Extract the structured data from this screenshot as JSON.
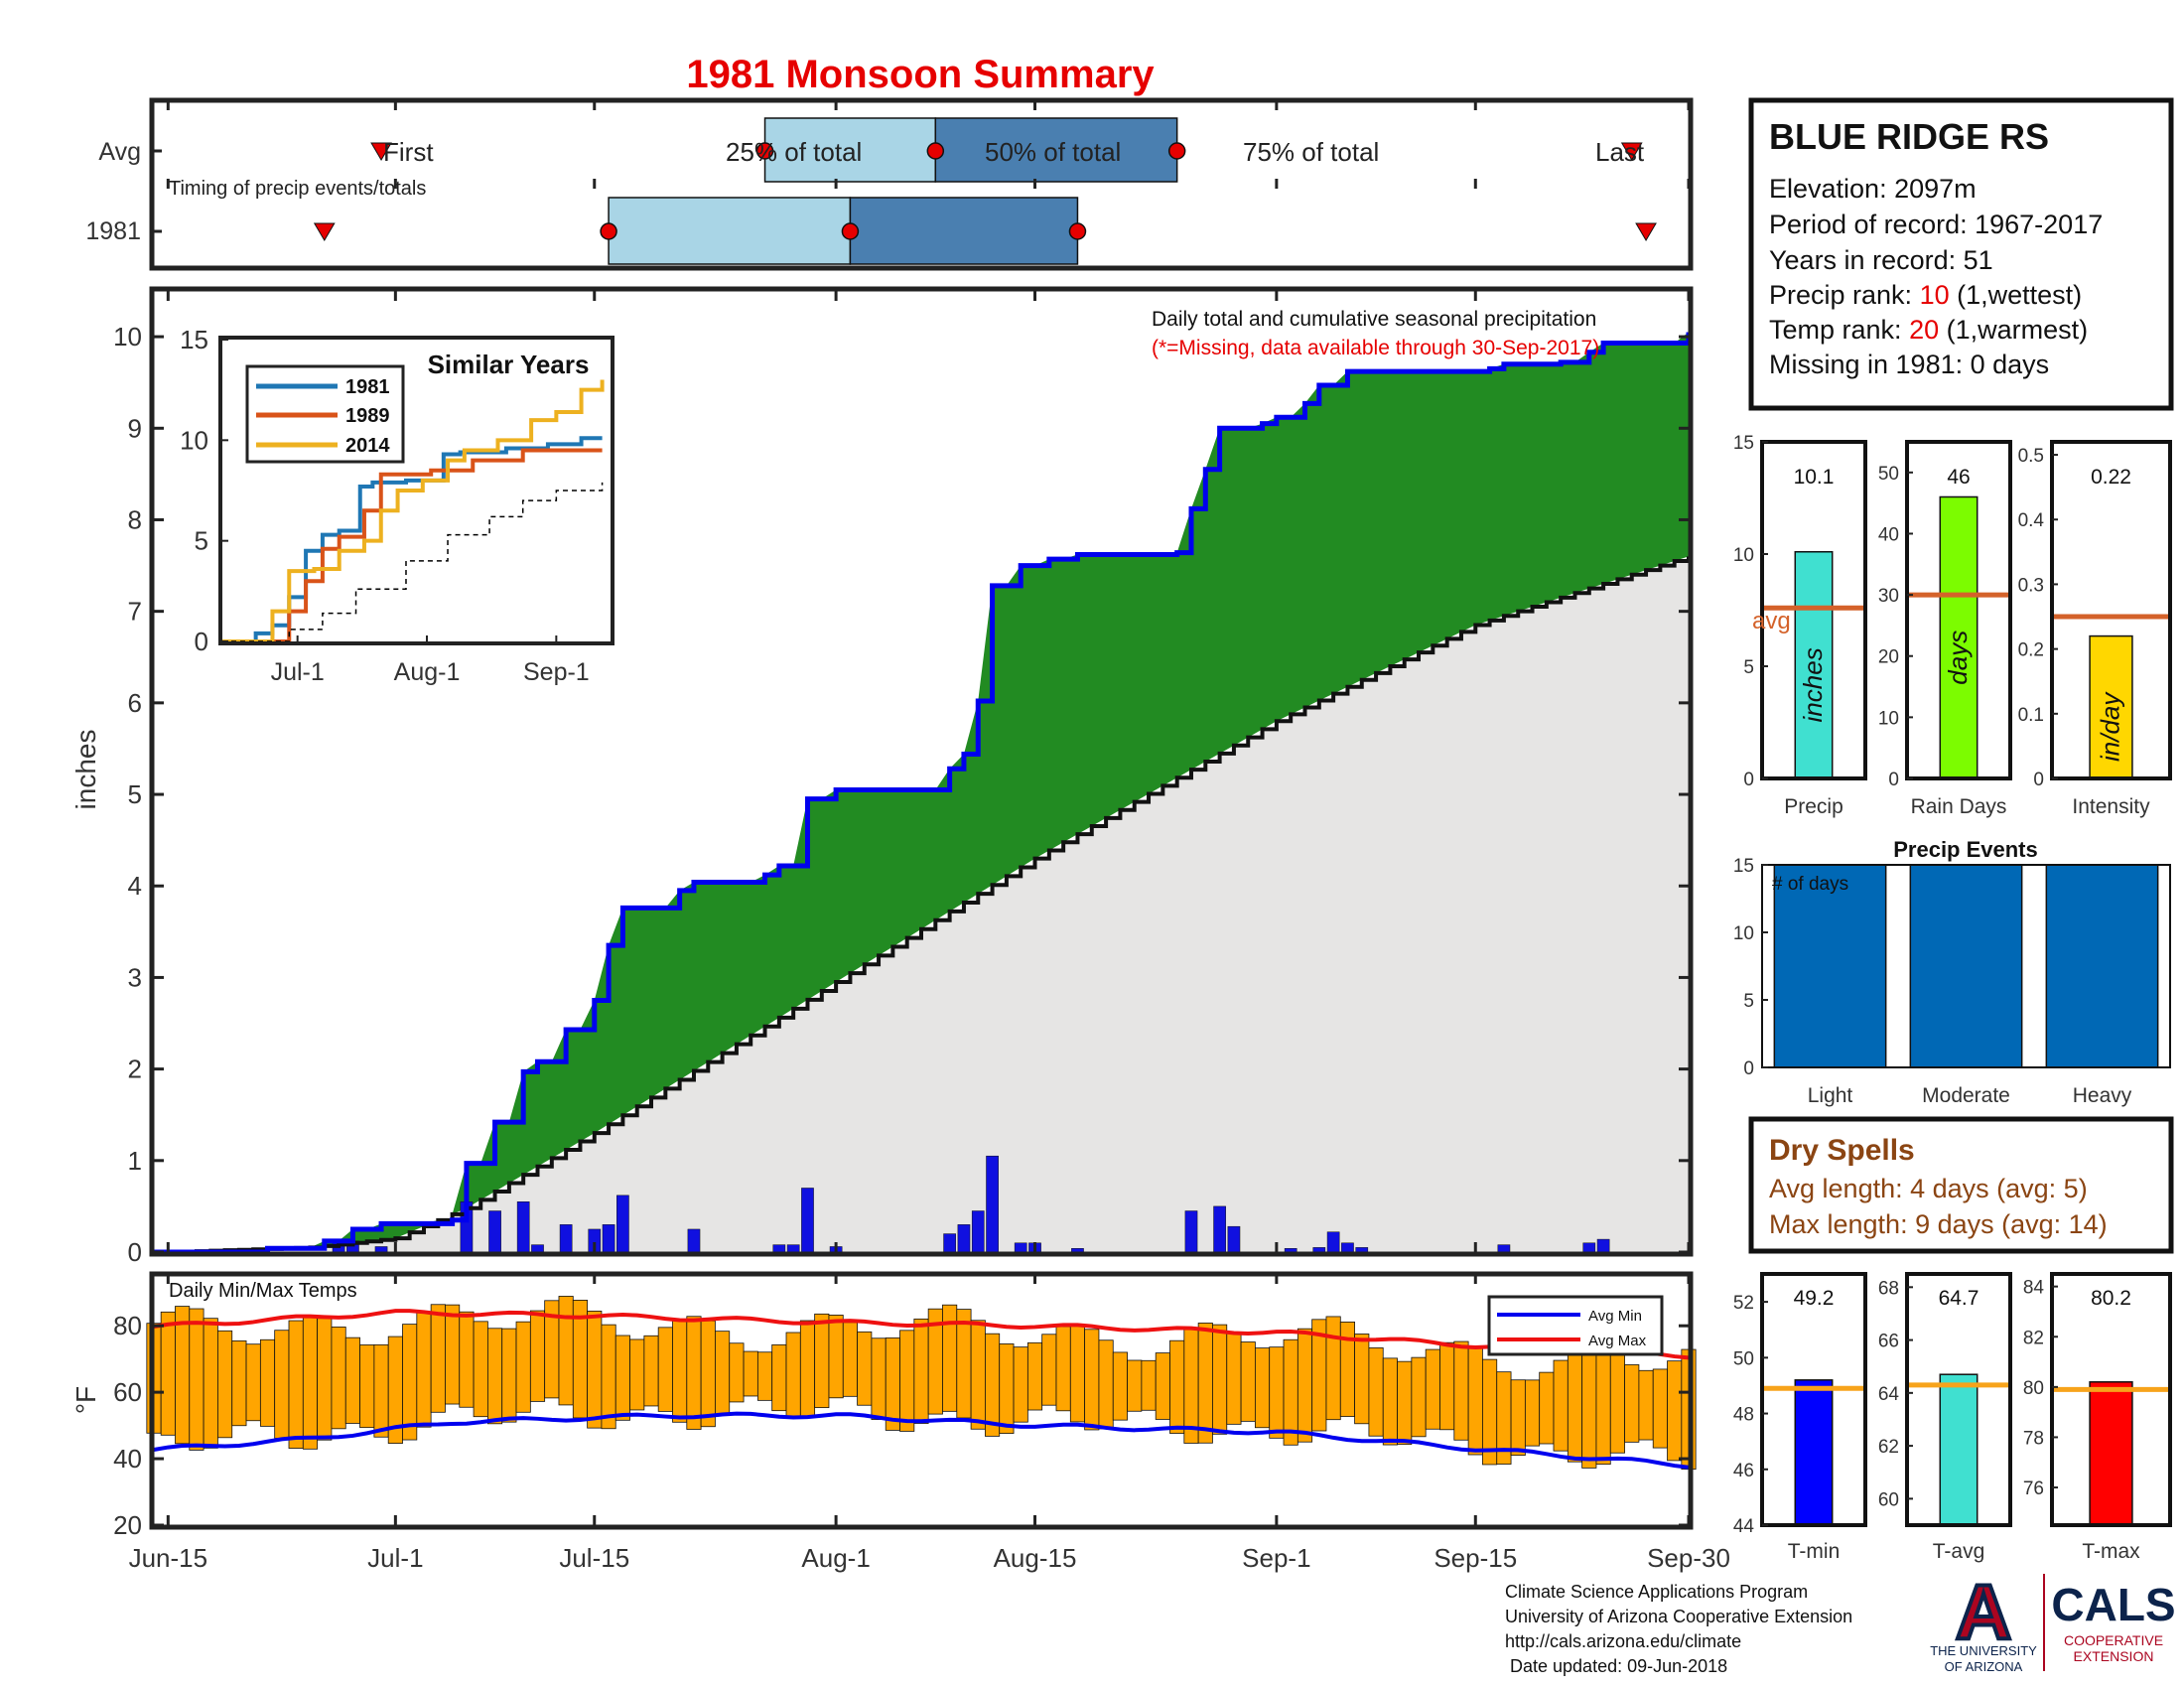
{
  "title": "1981 Monsoon Summary",
  "colors": {
    "title": "#e60000",
    "cumulative_line": "#0000ee",
    "green_fill": "#228b22",
    "avg_fill": "#e6e5e4",
    "daily_bar": "#1010e0",
    "temp_bar": "#ffa500",
    "avg_min_line": "#0000ee",
    "avg_max_line": "#ee1111",
    "light_blue": "#a9d5e6",
    "dark_blue": "#4a7fb0",
    "events_bar": "#0068b5",
    "avg_line": "#d4622a",
    "temp_avg_line": "#f7a31b",
    "dry_spell_text": "#8b4513",
    "rank_red": "#e60000"
  },
  "timing": {
    "row_labels": [
      "Avg",
      "1981"
    ],
    "caption": "Timing of precip events/totals",
    "marker_labels": [
      "First",
      "25% of total",
      "50% of total",
      "75% of total",
      "Last"
    ],
    "avg_dates": {
      "first": "Jun-30",
      "p25": "Jul-27",
      "p50": "Aug-08",
      "p75": "Aug-25",
      "last": "Sep-26"
    },
    "year_dates": {
      "first": "Jun-26",
      "p25": "Jul-16",
      "p50": "Aug-02",
      "p75": "Aug-18",
      "last": "Sep-27"
    }
  },
  "main_chart": {
    "type": "area",
    "ylabel": "inches",
    "ylim": [
      0,
      10.5
    ],
    "yticks": [
      0,
      1,
      2,
      3,
      4,
      5,
      6,
      7,
      8,
      9,
      10
    ],
    "date_range": [
      "Jun-15",
      "Sep-30"
    ],
    "xtick_labels": [
      "Jun-15",
      "Jul-1",
      "Jul-15",
      "Aug-1",
      "Aug-15",
      "Sep-1",
      "Sep-15",
      "Sep-30"
    ],
    "annotation_line1": "Daily total and cumulative seasonal precipitation",
    "annotation_line2": "(*=Missing, data available through 30-Sep-2017)"
  },
  "chart_data": {
    "type": "area",
    "title": "1981 Monsoon Summary",
    "ylabel": "inches",
    "ylim": [
      0,
      10.5
    ],
    "cumulative_1981": [
      [
        "Jun-15",
        0.0
      ],
      [
        "Jun-22",
        0.04
      ],
      [
        "Jun-26",
        0.12
      ],
      [
        "Jun-28",
        0.25
      ],
      [
        "Jun-30",
        0.31
      ],
      [
        "Jul-5",
        0.35
      ],
      [
        "Jul-6",
        0.97
      ],
      [
        "Jul-8",
        1.42
      ],
      [
        "Jul-10",
        1.97
      ],
      [
        "Jul-11",
        2.08
      ],
      [
        "Jul-13",
        2.43
      ],
      [
        "Jul-15",
        2.75
      ],
      [
        "Jul-16",
        3.35
      ],
      [
        "Jul-17",
        3.76
      ],
      [
        "Jul-21",
        3.95
      ],
      [
        "Jul-22",
        4.04
      ],
      [
        "Jul-27",
        4.12
      ],
      [
        "Jul-28",
        4.22
      ],
      [
        "Jul-30",
        4.95
      ],
      [
        "Aug-1",
        5.05
      ],
      [
        "Aug-8",
        5.05
      ],
      [
        "Aug-9",
        5.28
      ],
      [
        "Aug-10",
        5.44
      ],
      [
        "Aug-11",
        6.02
      ],
      [
        "Aug-12",
        7.28
      ],
      [
        "Aug-14",
        7.5
      ],
      [
        "Aug-16",
        7.57
      ],
      [
        "Aug-18",
        7.62
      ],
      [
        "Aug-25",
        7.64
      ],
      [
        "Aug-26",
        8.12
      ],
      [
        "Aug-27",
        8.55
      ],
      [
        "Aug-28",
        9.0
      ],
      [
        "Aug-31",
        9.05
      ],
      [
        "Sep-1",
        9.12
      ],
      [
        "Sep-3",
        9.27
      ],
      [
        "Sep-4",
        9.47
      ],
      [
        "Sep-6",
        9.62
      ],
      [
        "Sep-16",
        9.65
      ],
      [
        "Sep-17",
        9.7
      ],
      [
        "Sep-21",
        9.72
      ],
      [
        "Sep-23",
        9.83
      ],
      [
        "Sep-24",
        9.93
      ],
      [
        "Sep-30",
        10.05
      ]
    ],
    "cumulative_avg": [
      [
        "Jun-15",
        0.0
      ],
      [
        "Jun-25",
        0.05
      ],
      [
        "Jul-1",
        0.15
      ],
      [
        "Jul-6",
        0.48
      ],
      [
        "Jul-15",
        1.3
      ],
      [
        "Aug-1",
        2.95
      ],
      [
        "Aug-15",
        4.3
      ],
      [
        "Sep-1",
        5.8
      ],
      [
        "Sep-15",
        6.85
      ],
      [
        "Sep-30",
        7.6
      ]
    ],
    "daily_precip": [
      [
        "Jun-27",
        0.12
      ],
      [
        "Jun-28",
        0.12
      ],
      [
        "Jun-30",
        0.06
      ],
      [
        "Jul-6",
        0.55
      ],
      [
        "Jul-8",
        0.45
      ],
      [
        "Jul-10",
        0.55
      ],
      [
        "Jul-11",
        0.08
      ],
      [
        "Jul-13",
        0.3
      ],
      [
        "Jul-15",
        0.25
      ],
      [
        "Jul-16",
        0.3
      ],
      [
        "Jul-17",
        0.62
      ],
      [
        "Jul-22",
        0.25
      ],
      [
        "Jul-28",
        0.08
      ],
      [
        "Jul-29",
        0.08
      ],
      [
        "Jul-30",
        0.7
      ],
      [
        "Aug-1",
        0.06
      ],
      [
        "Aug-9",
        0.2
      ],
      [
        "Aug-10",
        0.3
      ],
      [
        "Aug-11",
        0.45
      ],
      [
        "Aug-12",
        1.05
      ],
      [
        "Aug-14",
        0.1
      ],
      [
        "Aug-15",
        0.1
      ],
      [
        "Aug-18",
        0.04
      ],
      [
        "Aug-26",
        0.45
      ],
      [
        "Aug-28",
        0.5
      ],
      [
        "Aug-29",
        0.28
      ],
      [
        "Sep-2",
        0.04
      ],
      [
        "Sep-4",
        0.05
      ],
      [
        "Sep-5",
        0.22
      ],
      [
        "Sep-6",
        0.1
      ],
      [
        "Sep-7",
        0.05
      ],
      [
        "Sep-17",
        0.08
      ],
      [
        "Sep-23",
        0.1
      ],
      [
        "Sep-24",
        0.14
      ]
    ],
    "temps": {
      "ylim": [
        20,
        95
      ],
      "yticks": [
        20,
        40,
        60,
        80
      ],
      "avg_min": [
        [
          "Jun-15",
          43
        ],
        [
          "Jun-25",
          46
        ],
        [
          "Jul-5",
          51
        ],
        [
          "Jul-20",
          53
        ],
        [
          "Aug-1",
          53
        ],
        [
          "Aug-15",
          50
        ],
        [
          "Sep-1",
          48
        ],
        [
          "Sep-15",
          43
        ],
        [
          "Sep-30",
          38
        ]
      ],
      "avg_max": [
        [
          "Jun-15",
          80
        ],
        [
          "Jul-1",
          84
        ],
        [
          "Jul-15",
          83
        ],
        [
          "Aug-1",
          81
        ],
        [
          "Aug-15",
          80
        ],
        [
          "Sep-1",
          78
        ],
        [
          "Sep-15",
          74
        ],
        [
          "Sep-30",
          71
        ]
      ]
    },
    "similar_years": {
      "title": "Similar Years",
      "ylim": [
        0,
        15
      ],
      "yticks": [
        0,
        5,
        10,
        15
      ],
      "xtick_labels": [
        "Jul-1",
        "Aug-1",
        "Sep-1"
      ],
      "series": [
        {
          "name": "1981",
          "color": "#1f77b4",
          "values": [
            [
              0,
              0
            ],
            [
              6,
              0
            ],
            [
              8,
              0.4
            ],
            [
              12,
              0.8
            ],
            [
              16,
              2.2
            ],
            [
              20,
              4.5
            ],
            [
              24,
              5.3
            ],
            [
              28,
              5.5
            ],
            [
              33,
              7.7
            ],
            [
              36,
              7.9
            ],
            [
              44,
              8.0
            ],
            [
              53,
              9.3
            ],
            [
              57,
              9.4
            ],
            [
              68,
              9.6
            ],
            [
              78,
              9.8
            ],
            [
              86,
              10.1
            ],
            [
              91,
              10.1
            ]
          ]
        },
        {
          "name": "1989",
          "color": "#d95319",
          "values": [
            [
              0,
              0
            ],
            [
              14,
              0
            ],
            [
              16,
              1.5
            ],
            [
              20,
              3.0
            ],
            [
              24,
              4.6
            ],
            [
              28,
              5.2
            ],
            [
              34,
              6.5
            ],
            [
              38,
              8.3
            ],
            [
              44,
              8.3
            ],
            [
              50,
              8.5
            ],
            [
              60,
              9.0
            ],
            [
              72,
              9.5
            ],
            [
              91,
              9.5
            ]
          ]
        },
        {
          "name": "2014",
          "color": "#edb120",
          "values": [
            [
              0,
              0
            ],
            [
              10,
              0
            ],
            [
              12,
              1.5
            ],
            [
              16,
              3.5
            ],
            [
              22,
              3.6
            ],
            [
              28,
              4.5
            ],
            [
              34,
              5.0
            ],
            [
              38,
              6.5
            ],
            [
              42,
              7.5
            ],
            [
              48,
              8.0
            ],
            [
              54,
              9.0
            ],
            [
              58,
              9.5
            ],
            [
              66,
              10.0
            ],
            [
              74,
              11.0
            ],
            [
              80,
              11.4
            ],
            [
              86,
              12.5
            ],
            [
              91,
              13.0
            ]
          ]
        },
        {
          "name": "avg",
          "color": "#000000",
          "values": [
            [
              0,
              0
            ],
            [
              8,
              0
            ],
            [
              16,
              0.6
            ],
            [
              24,
              1.4
            ],
            [
              32,
              2.6
            ],
            [
              44,
              4.0
            ],
            [
              54,
              5.3
            ],
            [
              64,
              6.2
            ],
            [
              72,
              7.0
            ],
            [
              80,
              7.5
            ],
            [
              91,
              7.9
            ]
          ]
        }
      ]
    },
    "stat_bars": [
      {
        "label": "Precip",
        "unit": "inches",
        "value": 10.1,
        "value_label": "10.1",
        "avg": 7.6,
        "ylim": [
          0,
          15
        ],
        "yticks": [
          0,
          5,
          10,
          15
        ],
        "color": "#40e0d0"
      },
      {
        "label": "Rain Days",
        "unit": "days",
        "value": 46,
        "value_label": "46",
        "avg": 30,
        "ylim": [
          0,
          55
        ],
        "yticks": [
          0,
          10,
          20,
          30,
          40,
          50
        ],
        "color": "#7cfc00"
      },
      {
        "label": "Intensity",
        "unit": "in/day",
        "value": 0.22,
        "value_label": "0.22",
        "avg": 0.25,
        "ylim": [
          0,
          0.52
        ],
        "yticks": [
          0,
          0.1,
          0.2,
          0.3,
          0.4,
          0.5
        ],
        "color": "#ffd700"
      }
    ],
    "precip_events": {
      "title": "Precip Events",
      "ylabel": "# of days",
      "categories": [
        "Light",
        "Moderate",
        "Heavy"
      ],
      "values": [
        15,
        15,
        15
      ],
      "ylim": [
        0,
        15
      ],
      "yticks": [
        0,
        5,
        10,
        15
      ]
    },
    "temp_bars": [
      {
        "label": "T-min",
        "value": 49.2,
        "value_label": "49.2",
        "avg": 48.9,
        "ylim": [
          44,
          53
        ],
        "yticks": [
          44,
          46,
          48,
          50,
          52
        ],
        "color": "#0000ff"
      },
      {
        "label": "T-avg",
        "value": 64.7,
        "value_label": "64.7",
        "avg": 64.3,
        "ylim": [
          59,
          68.5
        ],
        "yticks": [
          60,
          62,
          64,
          66,
          68
        ],
        "color": "#40e0d0"
      },
      {
        "label": "T-max",
        "value": 80.2,
        "value_label": "80.2",
        "avg": 79.9,
        "ylim": [
          74.5,
          84.5
        ],
        "yticks": [
          76,
          78,
          80,
          82,
          84
        ],
        "color": "#ff0000"
      }
    ]
  },
  "temp_panel": {
    "title": "Daily Min/Max Temps",
    "ylabel": "°F",
    "legend": [
      "Avg Min",
      "Avg Max"
    ]
  },
  "inset": {
    "title": "Similar Years",
    "legend": [
      "1981",
      "1989",
      "2014"
    ]
  },
  "station": {
    "name": "BLUE RIDGE RS",
    "elevation": "Elevation: 2097m",
    "period": "Period of record: 1967-2017",
    "years": "Years in record: 51",
    "precip_rank_prefix": "Precip rank: ",
    "precip_rank_value": "10",
    "precip_rank_suffix": " (1,wettest)",
    "temp_rank_prefix": "Temp rank: ",
    "temp_rank_value": "20",
    "temp_rank_suffix": " (1,warmest)",
    "missing": "Missing in 1981: 0 days"
  },
  "stats_panel": {
    "avg_label": "avg"
  },
  "dry_spells": {
    "title": "Dry Spells",
    "avg_length": "Avg length: 4 days (avg: 5)",
    "max_length": "Max length: 9 days (avg: 14)"
  },
  "footer": {
    "line1": "Climate Science Applications Program",
    "line2": "University of Arizona Cooperative Extension",
    "line3": "http://cals.arizona.edu/climate",
    "line4": " Date updated: 09-Jun-2018"
  },
  "logos": {
    "ua_letter": "A",
    "ua_line1": "THE UNIVERSITY",
    "ua_line2": "OF ARIZONA",
    "cals": "CALS",
    "cals_line1": "COOPERATIVE",
    "cals_line2": "EXTENSION"
  }
}
